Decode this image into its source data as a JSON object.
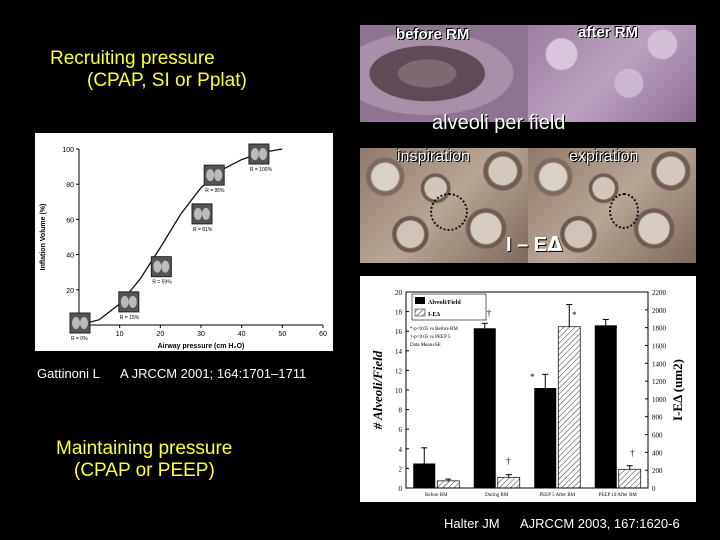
{
  "slide": {
    "recruiting_line1": "Recruiting pressure",
    "recruiting_line2": "(CPAP, SI or Pplat)",
    "maintaining_line1": "Maintaining pressure",
    "maintaining_line2": "(CPAP or PEEP)",
    "colors": {
      "accent_text": "#ffff33",
      "background": "#000000"
    }
  },
  "micrographs": {
    "before_label": "before RM",
    "after_label": "after RM",
    "alveoli_label": "alveoli per field",
    "inspiration_label": "inspiration",
    "expiration_label": "expiration",
    "ie_label": "I – E",
    "delta_symbol": "Δ"
  },
  "citation_gattinoni": {
    "author": "Gattinoni L",
    "ref": "A JRCCM 2001; 164:1701–1711"
  },
  "citation_halter": {
    "author": "Halter JM",
    "ref": "AJRCCM 2003, 167:1620-6"
  },
  "chart_data": [
    {
      "type": "line",
      "xlabel": "Airway pressure (cm H₂O)",
      "ylabel": "Inflation Volume (%)",
      "xlim": [
        0,
        60
      ],
      "ylim": [
        0,
        100
      ],
      "xticks": [
        10,
        20,
        30,
        40,
        50,
        60
      ],
      "yticks": [
        20,
        40,
        60,
        80,
        100
      ],
      "series": [
        {
          "x": [
            0,
            5,
            10,
            15,
            20,
            25,
            30,
            35,
            40,
            45,
            50
          ],
          "y": [
            0,
            3,
            12,
            26,
            44,
            63,
            78,
            88,
            94,
            98,
            100
          ]
        }
      ],
      "annotations": [
        "R = 0%",
        "R = 15%",
        "R = 59%",
        "R = 81%",
        "R = 95%",
        "R = 100%"
      ]
    },
    {
      "type": "bar",
      "categories": [
        "Before RM",
        "During RM",
        "PEEP 5 After RM",
        "PEEP 10 After RM"
      ],
      "series": [
        {
          "name": "Alveoli/Field",
          "axis": "left",
          "values": [
            2.5,
            16.3,
            10.2,
            16.6
          ]
        },
        {
          "name": "I-EΔ",
          "axis": "right",
          "values": [
            80,
            120,
            1810,
            210
          ]
        }
      ],
      "errors_left": [
        1.6,
        0.5,
        1.4,
        0.6
      ],
      "errors_right": [
        20,
        30,
        250,
        40
      ],
      "ylabel_left": "# Alveoli/Field",
      "ylabel_right": "I-EΔ (um2)",
      "ylim_left": [
        0,
        20
      ],
      "ylim_right": [
        0,
        2200
      ],
      "yticks_left": [
        0,
        2,
        4,
        6,
        8,
        10,
        12,
        14,
        16,
        18,
        20
      ],
      "yticks_right": [
        0,
        200,
        400,
        600,
        800,
        1000,
        1200,
        1400,
        1600,
        1800,
        2000,
        2200
      ],
      "legend": [
        "Alveoli/Field",
        "I-EΔ"
      ],
      "notes": [
        "*-p<0.05 vs Before RM",
        "†-p<0.05 vs PEEP 5",
        "Data Mean±SE"
      ],
      "markers": [
        "†",
        "* †",
        "*",
        "*",
        "* †",
        "†"
      ]
    }
  ]
}
